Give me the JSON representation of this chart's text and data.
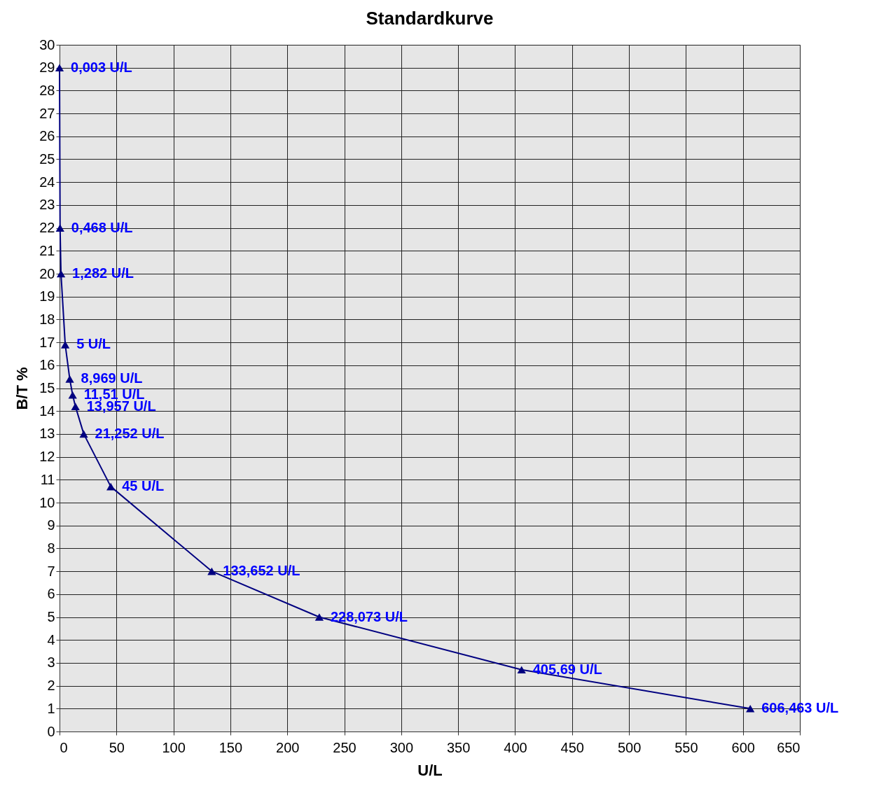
{
  "chart_data": {
    "type": "line",
    "title": "Standardkurve",
    "xlabel": "U/L",
    "ylabel": "B/T %",
    "x": [
      0.003,
      0.468,
      1.282,
      5,
      8.969,
      11.51,
      13.957,
      21.252,
      45,
      133.652,
      228.073,
      405.69,
      606.463
    ],
    "series": [
      {
        "color": "#000080",
        "values": [
          29,
          22,
          20,
          16.9,
          15.4,
          14.7,
          14.2,
          13.0,
          10.7,
          7.0,
          5.0,
          2.7,
          1.0
        ]
      }
    ],
    "annotations": [
      {
        "text": "0,003 U/L",
        "x": 0.003,
        "y": 29
      },
      {
        "text": "0,468 U/L",
        "x": 0.468,
        "y": 22
      },
      {
        "text": "1,282 U/L",
        "x": 1.282,
        "y": 20
      },
      {
        "text": "5 U/L",
        "x": 5,
        "y": 16.9
      },
      {
        "text": "8,969 U/L",
        "x": 8.969,
        "y": 15.4
      },
      {
        "text": "11,51 U/L",
        "x": 11.51,
        "y": 14.7
      },
      {
        "text": "13,957 U/L",
        "x": 13.957,
        "y": 14.2
      },
      {
        "text": "21,252 U/L",
        "x": 21.252,
        "y": 13.0
      },
      {
        "text": "45 U/L",
        "x": 45,
        "y": 10.7
      },
      {
        "text": "133,652 U/L",
        "x": 133.652,
        "y": 7.0
      },
      {
        "text": "228,073 U/L",
        "x": 228.073,
        "y": 5.0
      },
      {
        "text": "405,69 U/L",
        "x": 405.69,
        "y": 2.7
      },
      {
        "text": "606,463 U/L",
        "x": 606.463,
        "y": 1.0
      }
    ],
    "xlim": [
      0,
      650
    ],
    "xticks": [
      0,
      50,
      100,
      150,
      200,
      250,
      300,
      350,
      400,
      450,
      500,
      550,
      600,
      650
    ],
    "ylim": [
      0,
      30
    ],
    "yticks": [
      0,
      1,
      2,
      3,
      4,
      5,
      6,
      7,
      8,
      9,
      10,
      11,
      12,
      13,
      14,
      15,
      16,
      17,
      18,
      19,
      20,
      21,
      22,
      23,
      24,
      25,
      26,
      27,
      28,
      29,
      30
    ],
    "grid": true,
    "marker": "triangle",
    "line_style": "solid"
  }
}
